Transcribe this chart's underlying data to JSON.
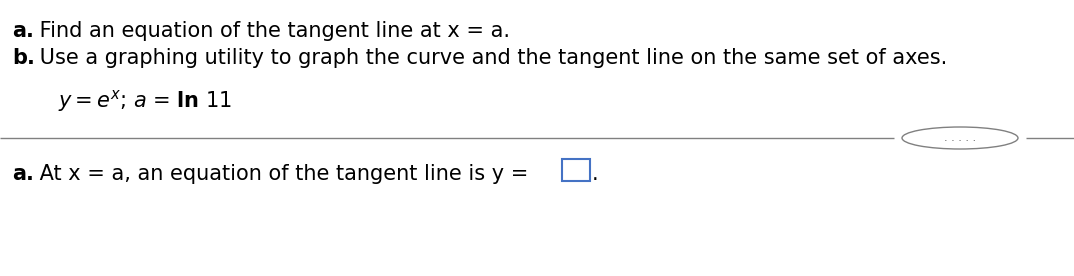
{
  "bg_color": "#ffffff",
  "text_color": "#000000",
  "line_color": "#808080",
  "box_color": "#4472c4",
  "dots_color": "#555555",
  "line1_bold": "a.",
  "line1_rest": " Find an equation of the tangent line at x = a.",
  "line2_bold": "b.",
  "line2_rest": " Use a graphing utility to graph the curve and the tangent line on the same set of axes.",
  "bottom_bold": "a.",
  "bottom_rest": " At x = a, an equation of the tangent line is y = ",
  "dots": ". . . . .",
  "figsize": [
    10.74,
    2.76
  ],
  "dpi": 100
}
